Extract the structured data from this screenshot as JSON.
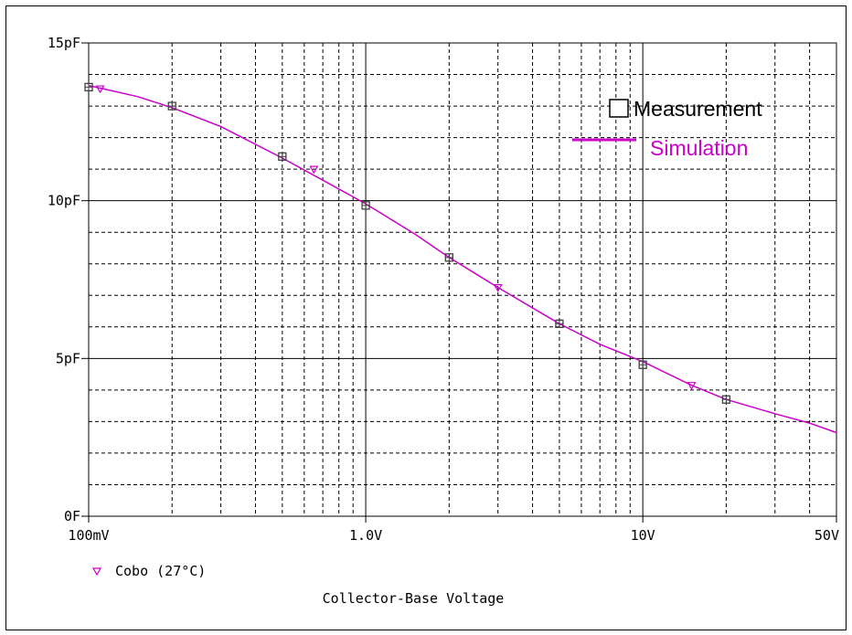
{
  "chart_data": {
    "type": "line",
    "xlabel": "Collector-Base Voltage",
    "x_scale": "log",
    "xlim": [
      0.1,
      50
    ],
    "ylim": [
      0,
      15
    ],
    "x_ticks": [
      {
        "value": 0.1,
        "label": "100mV"
      },
      {
        "value": 1.0,
        "label": "1.0V"
      },
      {
        "value": 10,
        "label": "10V"
      },
      {
        "value": 50,
        "label": "50V"
      }
    ],
    "y_ticks": [
      {
        "value": 0,
        "label": "0F"
      },
      {
        "value": 5,
        "label": "5pF"
      },
      {
        "value": 10,
        "label": "10pF"
      },
      {
        "value": 15,
        "label": "15pF"
      }
    ],
    "grid": true,
    "trace_label": "Cobo (27°C)",
    "legend": {
      "position": "top-right",
      "measurement_label": "Measurement",
      "simulation_label": "Simulation"
    },
    "colors": {
      "simulation": "#cc00cc",
      "measurement": "#404040",
      "grid": "#000000"
    },
    "series": [
      {
        "name": "Simulation",
        "x": [
          0.1,
          0.15,
          0.2,
          0.3,
          0.5,
          0.7,
          1.0,
          1.5,
          2.0,
          3.0,
          5.0,
          7.0,
          10,
          15,
          20,
          30,
          40,
          50
        ],
        "values": [
          13.65,
          13.3,
          12.95,
          12.35,
          11.35,
          10.65,
          9.9,
          8.95,
          8.2,
          7.25,
          6.1,
          5.45,
          4.9,
          4.15,
          3.7,
          3.25,
          2.95,
          2.65
        ]
      },
      {
        "name": "Measurement",
        "x": [
          0.1,
          0.2,
          0.5,
          1.0,
          2.0,
          5.0,
          10,
          20
        ],
        "values": [
          13.6,
          13.0,
          11.4,
          9.85,
          8.2,
          6.1,
          4.8,
          3.7
        ]
      },
      {
        "name": "Cobo (27°C)",
        "x": [
          0.11,
          0.65,
          3.0,
          15
        ],
        "values": [
          13.55,
          11.0,
          7.25,
          4.15
        ]
      }
    ]
  }
}
